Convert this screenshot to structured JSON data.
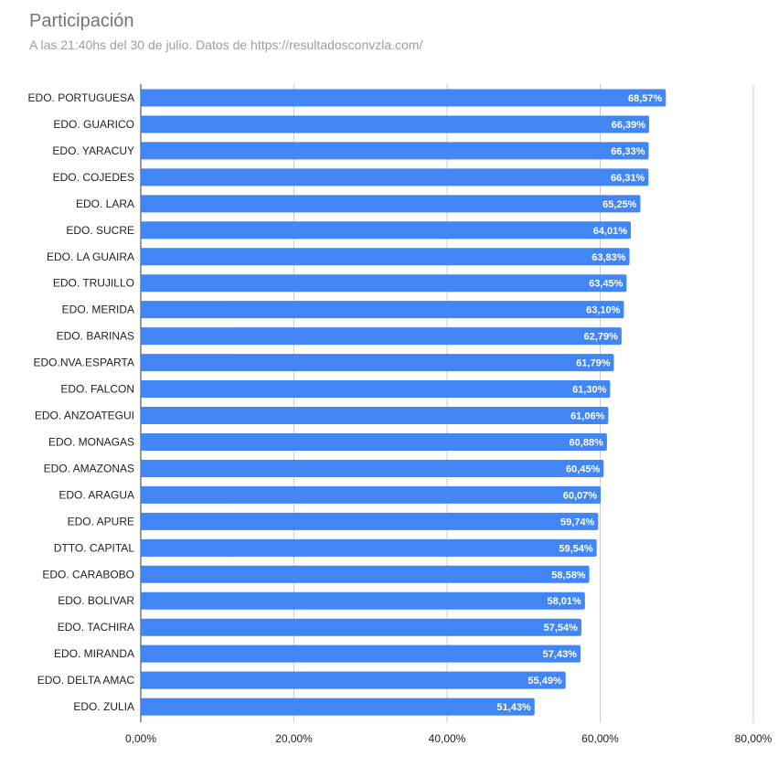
{
  "chart_data": {
    "type": "bar",
    "orientation": "horizontal",
    "title": "Participación",
    "subtitle": "A las 21:40hs del 30 de julio. Datos de https://resultadosconvzla.com/",
    "categories": [
      "EDO. PORTUGUESA",
      "EDO. GUARICO",
      "EDO. YARACUY",
      "EDO. COJEDES",
      "EDO. LARA",
      "EDO. SUCRE",
      "EDO. LA GUAIRA",
      "EDO. TRUJILLO",
      "EDO. MERIDA",
      "EDO. BARINAS",
      "EDO.NVA.ESPARTA",
      "EDO. FALCON",
      "EDO. ANZOATEGUI",
      "EDO. MONAGAS",
      "EDO. AMAZONAS",
      "EDO. ARAGUA",
      "EDO. APURE",
      "DTTO. CAPITAL",
      "EDO. CARABOBO",
      "EDO. BOLIVAR",
      "EDO. TACHIRA",
      "EDO. MIRANDA",
      "EDO. DELTA AMAC",
      "EDO. ZULIA"
    ],
    "values": [
      68.57,
      66.39,
      66.33,
      66.31,
      65.25,
      64.01,
      63.83,
      63.45,
      63.1,
      62.79,
      61.79,
      61.3,
      61.06,
      60.88,
      60.45,
      60.07,
      59.74,
      59.54,
      58.58,
      58.01,
      57.54,
      57.43,
      55.49,
      51.43
    ],
    "data_labels": [
      "68,57%",
      "66,39%",
      "66,33%",
      "66,31%",
      "65,25%",
      "64,01%",
      "63,83%",
      "63,45%",
      "63,10%",
      "62,79%",
      "61,79%",
      "61,30%",
      "61,06%",
      "60,88%",
      "60,45%",
      "60,07%",
      "59,74%",
      "59,54%",
      "58,58%",
      "58,01%",
      "57,54%",
      "57,43%",
      "55,49%",
      "51,43%"
    ],
    "x_ticks": [
      0,
      20,
      40,
      60,
      80
    ],
    "x_tick_labels": [
      "0,00%",
      "20,00%",
      "40,00%",
      "60,00%",
      "80,00%"
    ],
    "xlim": [
      0,
      80
    ],
    "grid": true,
    "colors": {
      "bar": "#4285f4",
      "grid": "#cccccc",
      "label_text": "#ffffff"
    }
  }
}
